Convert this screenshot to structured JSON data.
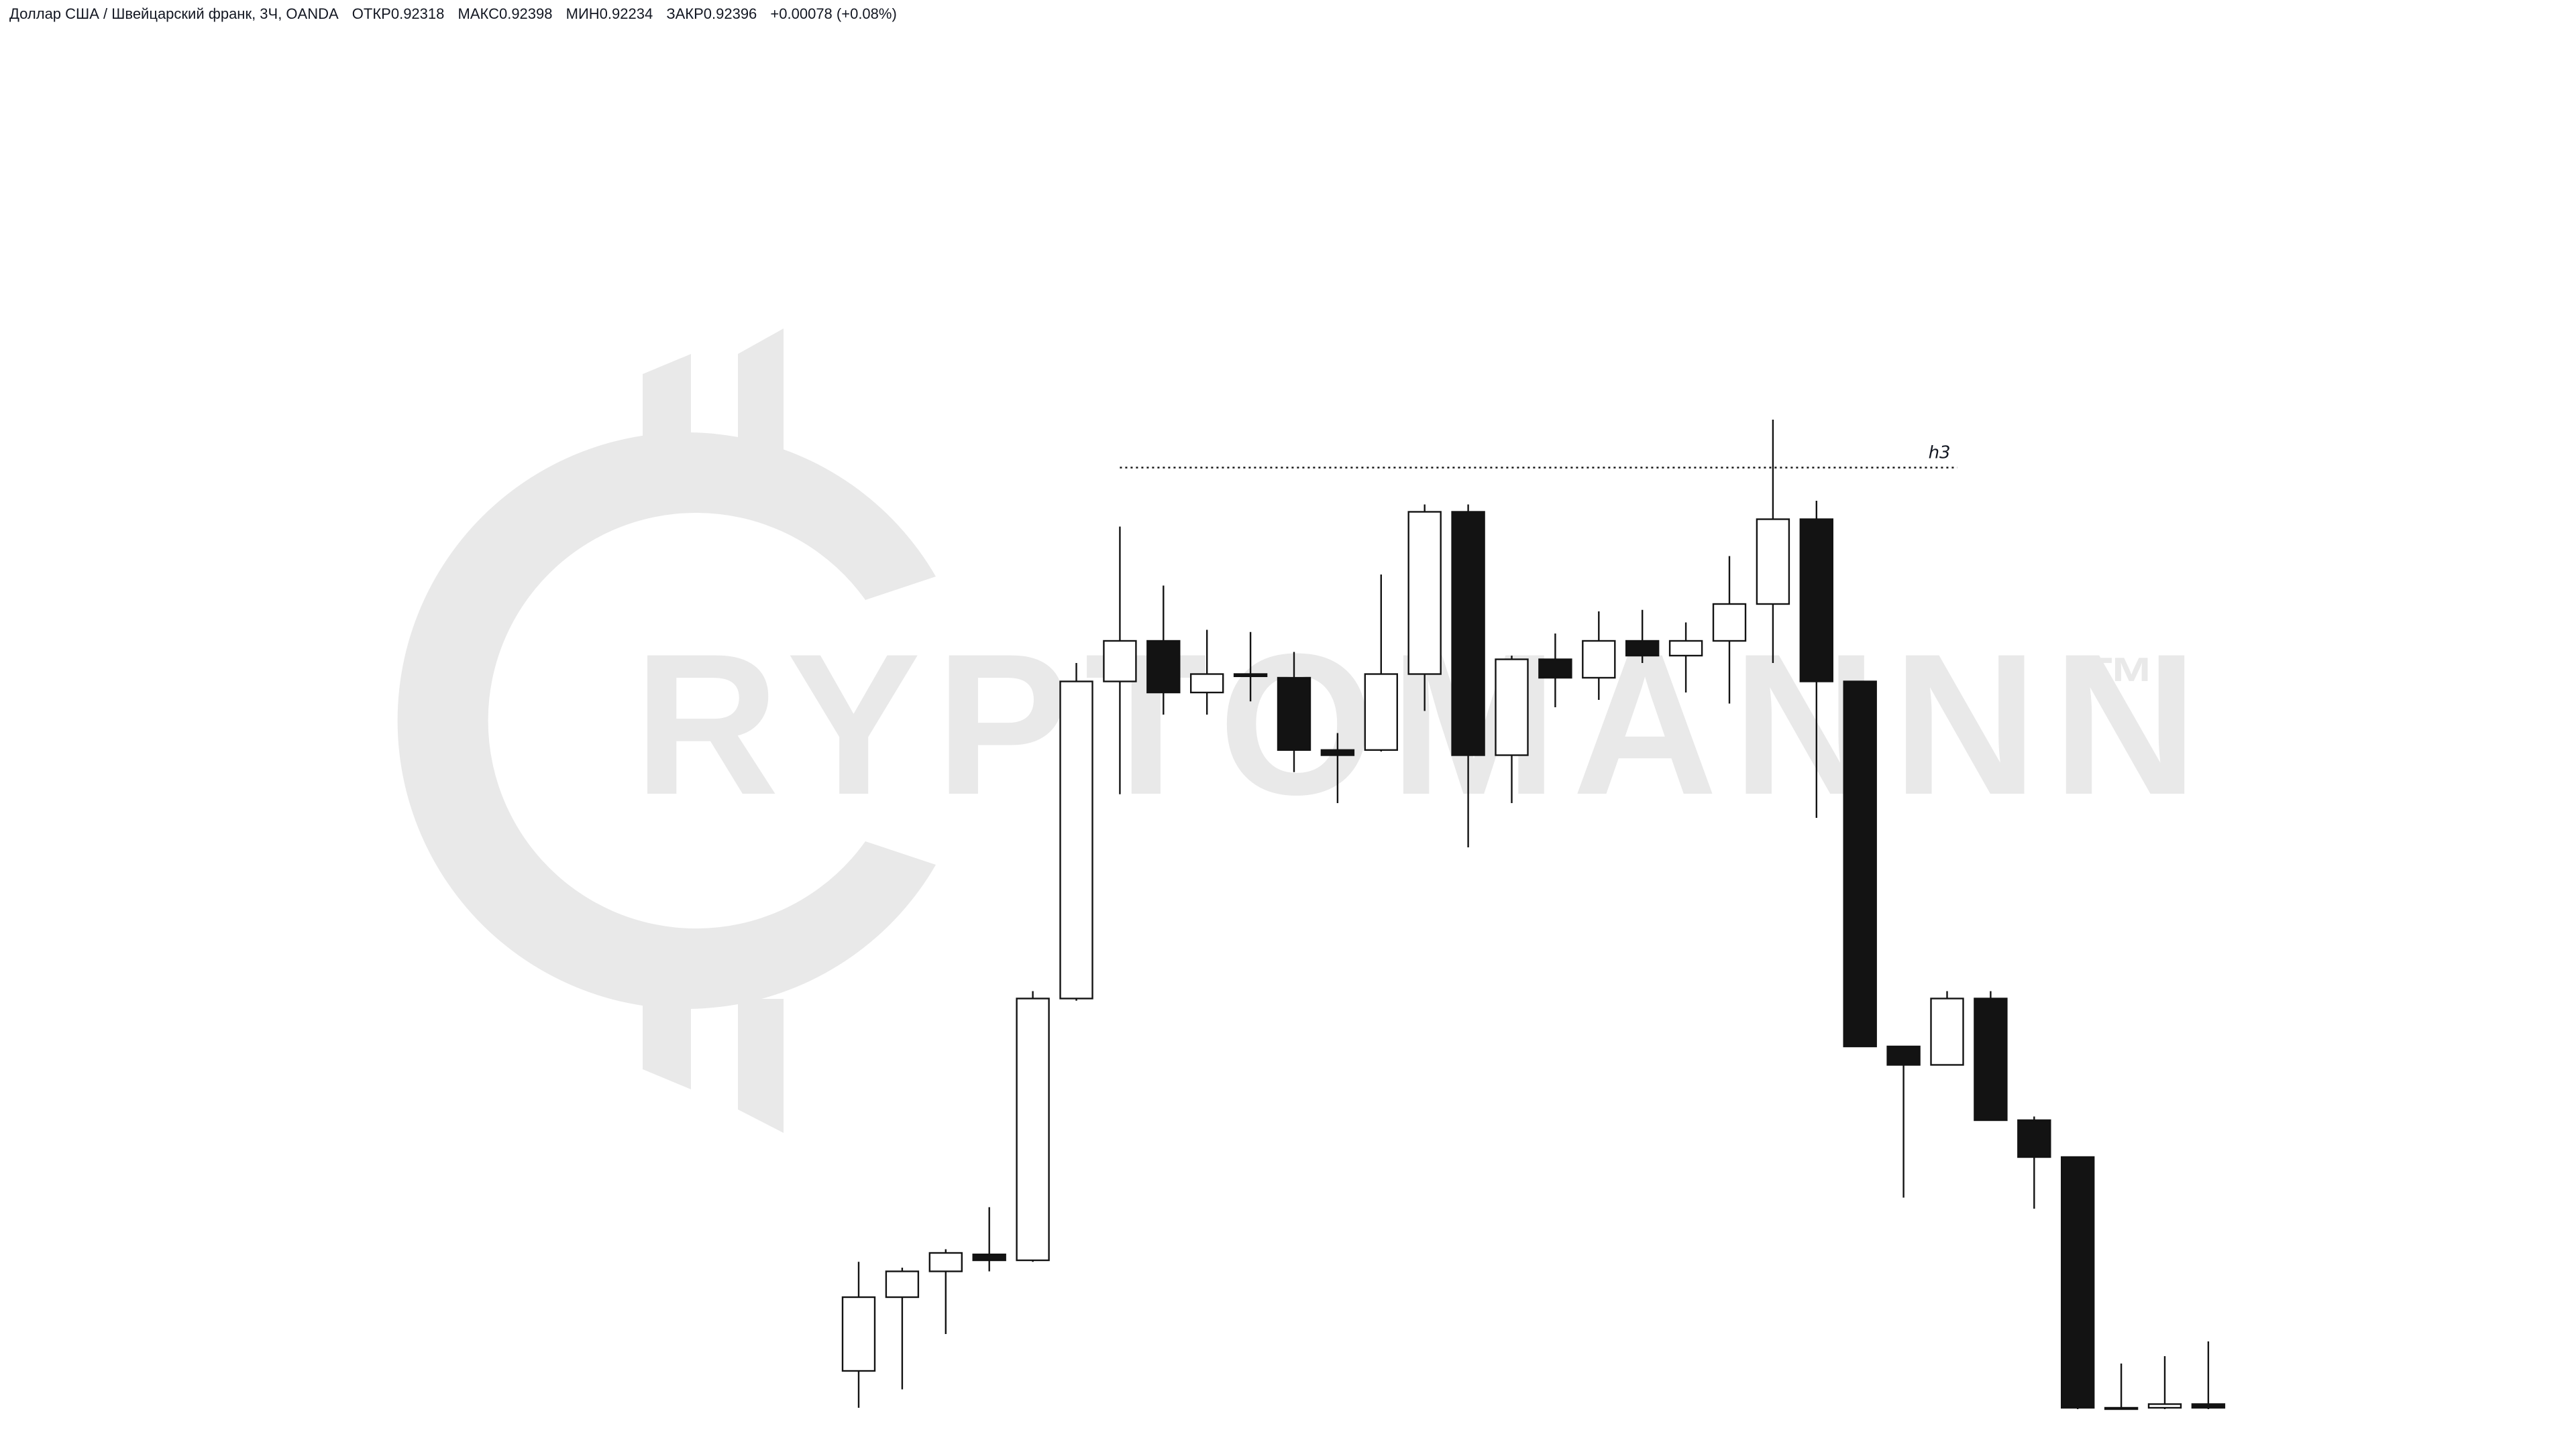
{
  "legend": {
    "symbol": "Доллар США / Швейцарский франк, 3Ч, OANDA",
    "open_label": "ОТКР",
    "open": "0.92318",
    "high_label": "МАКС",
    "high": "0.92398",
    "low_label": "МИН",
    "low": "0.92234",
    "close_label": "ЗАКР",
    "close": "0.92396",
    "change": "+0.00078 (+0.08%)"
  },
  "watermark": {
    "text": "RYPTOMANNN",
    "tm": "™",
    "color": "#e9e9e9"
  },
  "colors": {
    "bull_fill": "#ffffff",
    "bear_fill": "#131313",
    "outline": "#131313",
    "wick": "#131313"
  },
  "chart_data": {
    "type": "candlestick",
    "title": "",
    "xlabel": "",
    "ylabel": "",
    "ylim": [
      0,
      100
    ],
    "ohlc": [
      {
        "o": 5.0,
        "h": 19.8,
        "l": 0.0,
        "c": 15.0
      },
      {
        "o": 15.0,
        "h": 19.0,
        "l": 2.5,
        "c": 18.5
      },
      {
        "o": 18.5,
        "h": 21.5,
        "l": 10.0,
        "c": 21.0
      },
      {
        "o": 20.8,
        "h": 27.2,
        "l": 18.5,
        "c": 20.0
      },
      {
        "o": 20.0,
        "h": 56.5,
        "l": 19.8,
        "c": 55.5
      },
      {
        "o": 55.5,
        "h": 101.0,
        "l": 55.2,
        "c": 98.5
      },
      {
        "o": 98.5,
        "h": 119.5,
        "l": 83.2,
        "c": 104.0
      },
      {
        "o": 104.0,
        "h": 111.5,
        "l": 94.0,
        "c": 97.0
      },
      {
        "o": 97.0,
        "h": 105.5,
        "l": 94.0,
        "c": 99.5
      },
      {
        "o": 99.5,
        "h": 105.2,
        "l": 95.8,
        "c": 99.2
      },
      {
        "o": 99.0,
        "h": 102.5,
        "l": 86.2,
        "c": 89.2
      },
      {
        "o": 89.2,
        "h": 91.5,
        "l": 82.0,
        "c": 88.5
      },
      {
        "o": 89.2,
        "h": 113.0,
        "l": 89.0,
        "c": 99.5
      },
      {
        "o": 99.5,
        "h": 122.5,
        "l": 94.5,
        "c": 121.5
      },
      {
        "o": 121.5,
        "h": 122.5,
        "l": 76.0,
        "c": 88.5
      },
      {
        "o": 88.5,
        "h": 102.0,
        "l": 82.0,
        "c": 101.5
      },
      {
        "o": 101.5,
        "h": 105.0,
        "l": 95.0,
        "c": 99.0
      },
      {
        "o": 99.0,
        "h": 108.0,
        "l": 96.0,
        "c": 104.0
      },
      {
        "o": 104.0,
        "h": 108.2,
        "l": 101.0,
        "c": 102.0
      },
      {
        "o": 102.0,
        "h": 106.5,
        "l": 97.0,
        "c": 104.0
      },
      {
        "o": 104.0,
        "h": 115.5,
        "l": 95.5,
        "c": 109.0
      },
      {
        "o": 109.0,
        "h": 134.0,
        "l": 101.0,
        "c": 120.5
      },
      {
        "o": 120.5,
        "h": 123.0,
        "l": 80.0,
        "c": 98.5
      },
      {
        "o": 98.5,
        "h": 98.5,
        "l": 49.0,
        "c": 49.0
      },
      {
        "o": 49.0,
        "h": 49.0,
        "l": 28.5,
        "c": 46.5
      },
      {
        "o": 46.5,
        "h": 56.5,
        "l": 46.5,
        "c": 55.5
      },
      {
        "o": 55.5,
        "h": 56.5,
        "l": 39.5,
        "c": 39.0
      },
      {
        "o": 39.0,
        "h": 39.5,
        "l": 27.0,
        "c": 34.0
      },
      {
        "o": 34.0,
        "h": 34.0,
        "l": -2.0,
        "c": 0.0
      },
      {
        "o": 0.0,
        "h": 6.0,
        "l": -2.0,
        "c": -1.0
      },
      {
        "o": 0.0,
        "h": 7.0,
        "l": -2.0,
        "c": 0.5
      },
      {
        "o": 0.5,
        "h": 9.0,
        "l": -2.0,
        "c": 0.0
      }
    ],
    "hline": {
      "value": 127.5,
      "from_index": 6,
      "to_index": 24,
      "label": "h3"
    }
  }
}
